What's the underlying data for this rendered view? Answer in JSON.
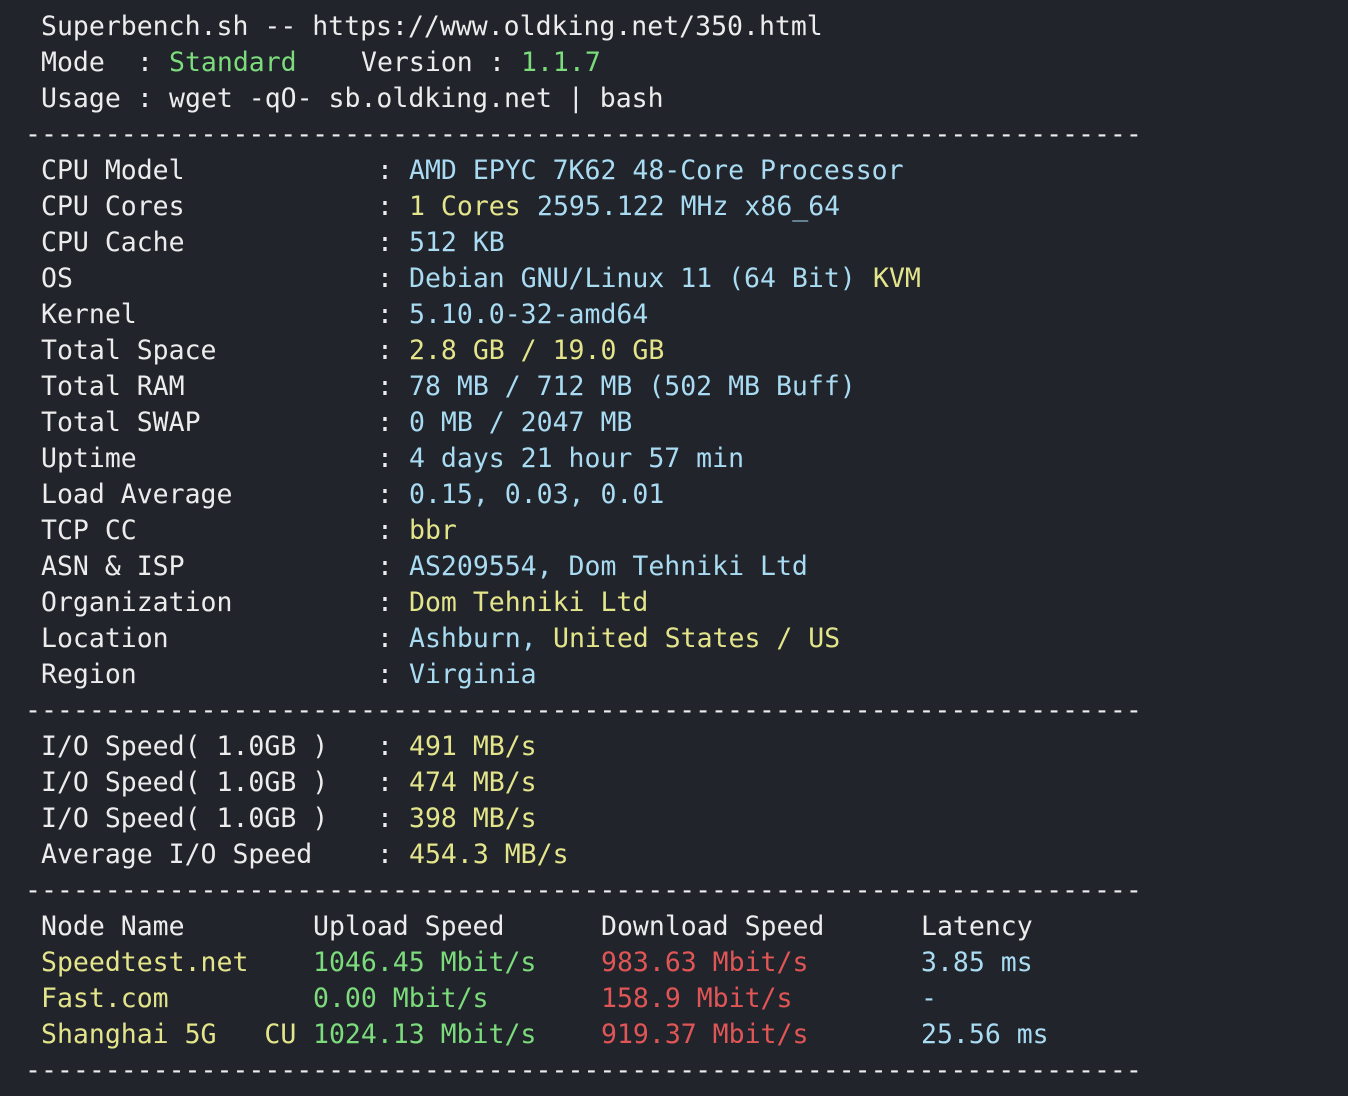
{
  "header": {
    "title": "Superbench.sh -- https://www.oldking.net/350.html",
    "mode_label": "Mode",
    "mode": "Standard",
    "version_label": "Version",
    "version": "1.1.7",
    "usage_label": "Usage",
    "usage": "wget -qO- sb.oldking.net | bash"
  },
  "colon": ":",
  "separator": "----------------------------------------------------------------------",
  "system": [
    {
      "label": "CPU Model",
      "value": [
        {
          "text": "AMD EPYC 7K62 48-Core Processor",
          "color": "cyan"
        }
      ]
    },
    {
      "label": "CPU Cores",
      "value": [
        {
          "text": "1 Cores",
          "color": "yellow"
        },
        {
          "text": "2595.122 MHz x86_64",
          "color": "cyan"
        }
      ]
    },
    {
      "label": "CPU Cache",
      "value": [
        {
          "text": "512 KB",
          "color": "cyan"
        }
      ]
    },
    {
      "label": "OS",
      "value": [
        {
          "text": "Debian GNU/Linux 11 (64 Bit)",
          "color": "cyan"
        },
        {
          "text": "KVM",
          "color": "yellow"
        }
      ]
    },
    {
      "label": "Kernel",
      "value": [
        {
          "text": "5.10.0-32-amd64",
          "color": "cyan"
        }
      ]
    },
    {
      "label": "Total Space",
      "value": [
        {
          "text": "2.8 GB / 19.0 GB",
          "color": "yellow"
        }
      ]
    },
    {
      "label": "Total RAM",
      "value": [
        {
          "text": "78 MB / 712 MB (502 MB Buff)",
          "color": "cyan"
        }
      ]
    },
    {
      "label": "Total SWAP",
      "value": [
        {
          "text": "0 MB / 2047 MB",
          "color": "cyan"
        }
      ]
    },
    {
      "label": "Uptime",
      "value": [
        {
          "text": "4 days 21 hour 57 min",
          "color": "cyan"
        }
      ]
    },
    {
      "label": "Load Average",
      "value": [
        {
          "text": "0.15, 0.03, 0.01",
          "color": "cyan"
        }
      ]
    },
    {
      "label": "TCP CC",
      "value": [
        {
          "text": "bbr",
          "color": "yellow"
        }
      ]
    },
    {
      "label": "ASN & ISP",
      "value": [
        {
          "text": "AS209554, Dom Tehniki Ltd",
          "color": "cyan"
        }
      ]
    },
    {
      "label": "Organization",
      "value": [
        {
          "text": "Dom Tehniki Ltd",
          "color": "yellow"
        }
      ]
    },
    {
      "label": "Location",
      "value": [
        {
          "text": "Ashburn,",
          "color": "cyan"
        },
        {
          "text": "United States / US",
          "color": "yellow"
        }
      ]
    },
    {
      "label": "Region",
      "value": [
        {
          "text": "Virginia",
          "color": "cyan"
        }
      ]
    }
  ],
  "io": [
    {
      "label": "I/O Speed( 1.0GB )",
      "value": [
        {
          "text": "491 MB/s",
          "color": "yellow"
        }
      ]
    },
    {
      "label": "I/O Speed( 1.0GB )",
      "value": [
        {
          "text": "474 MB/s",
          "color": "yellow"
        }
      ]
    },
    {
      "label": "I/O Speed( 1.0GB )",
      "value": [
        {
          "text": "398 MB/s",
          "color": "yellow"
        }
      ]
    },
    {
      "label": "Average I/O Speed",
      "value": [
        {
          "text": "454.3 MB/s",
          "color": "yellow"
        }
      ]
    }
  ],
  "speed": {
    "headers": [
      "Node Name",
      "Upload Speed",
      "Download Speed",
      "Latency"
    ],
    "colors": [
      "yellow",
      "green",
      "red",
      "cyan"
    ],
    "rows": [
      [
        "Speedtest.net",
        "1046.45 Mbit/s",
        "983.63 Mbit/s",
        "3.85 ms"
      ],
      [
        "Fast.com",
        "0.00 Mbit/s",
        "158.9 Mbit/s",
        "-"
      ],
      [
        "Shanghai 5G   CU",
        "1024.13 Mbit/s",
        "919.37 Mbit/s",
        "25.56 ms"
      ]
    ]
  }
}
